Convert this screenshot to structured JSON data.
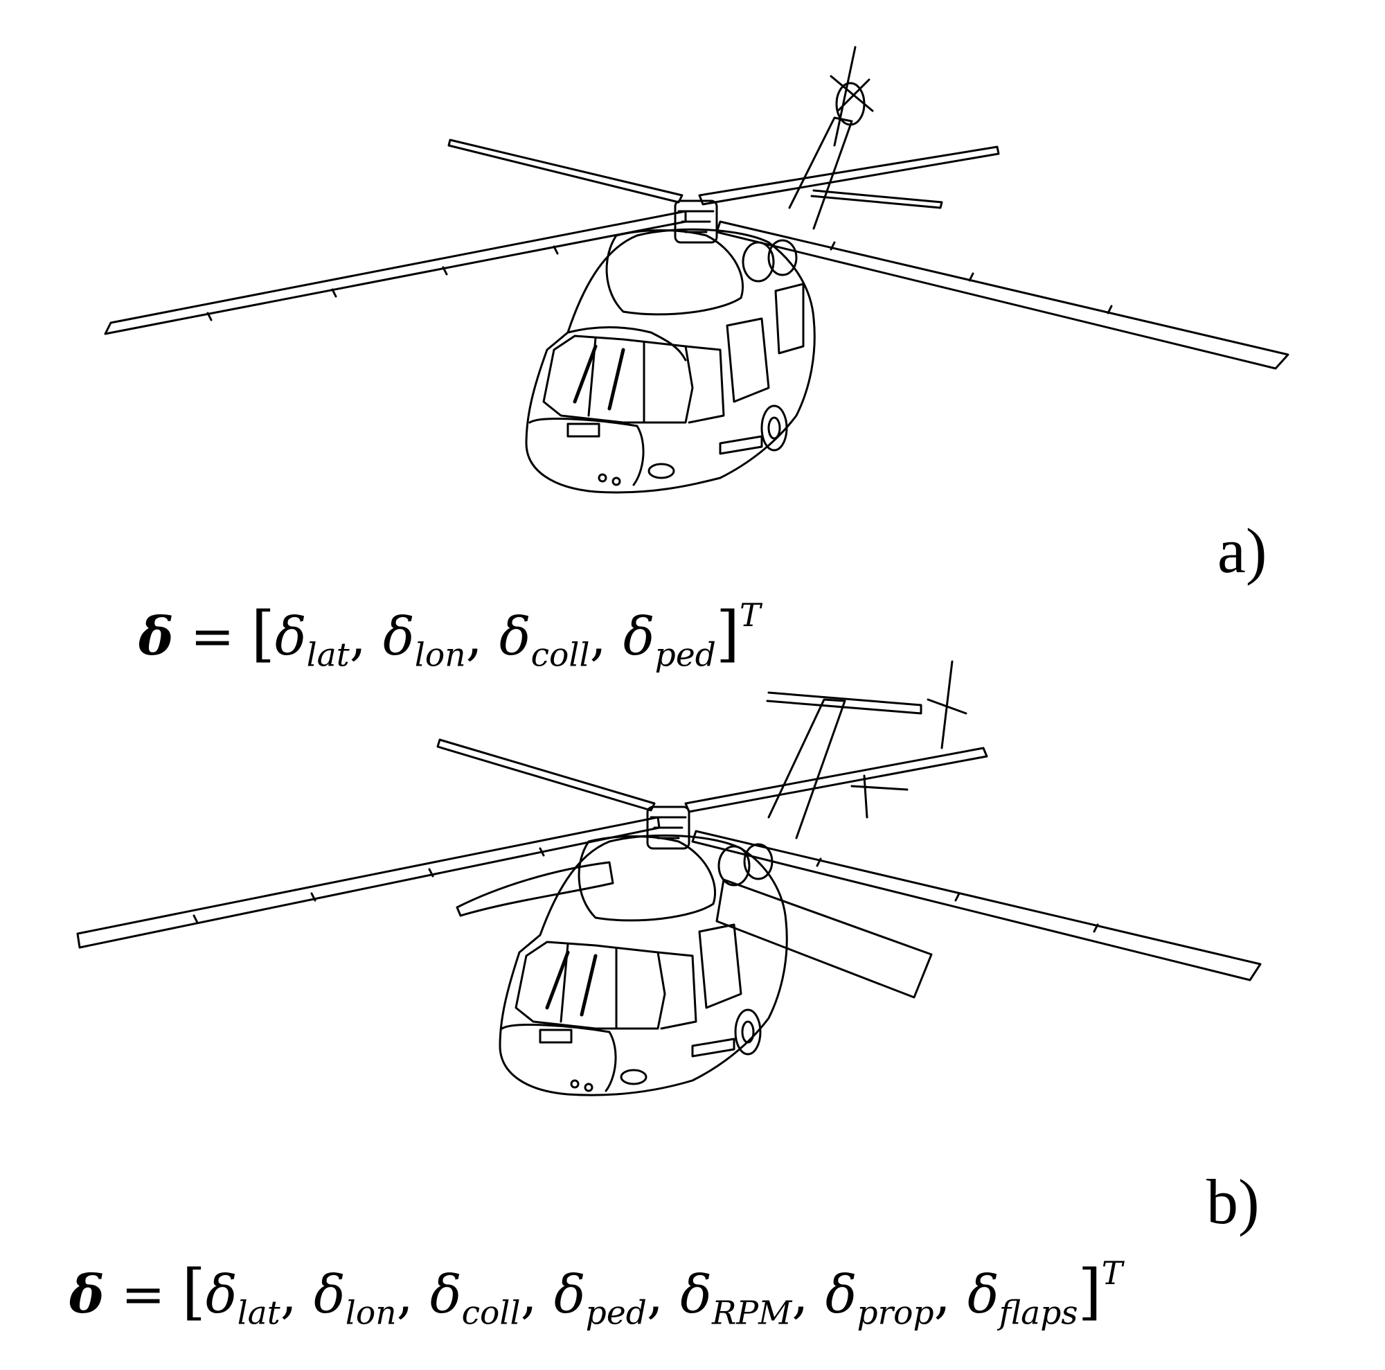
{
  "figure": {
    "panel_a": {
      "label": "a)",
      "equation": {
        "lhs": "δ",
        "equals": "=",
        "open": "[",
        "close": "]",
        "sup": "T",
        "terms": [
          {
            "sym": "δ",
            "sub": "lat"
          },
          {
            "sym": "δ",
            "sub": "lon"
          },
          {
            "sym": "δ",
            "sub": "coll"
          },
          {
            "sym": "δ",
            "sub": "ped"
          }
        ]
      }
    },
    "panel_b": {
      "label": "b)",
      "equation": {
        "lhs": "δ",
        "equals": "=",
        "open": "[",
        "close": "]",
        "sup": "T",
        "terms": [
          {
            "sym": "δ",
            "sub": "lat"
          },
          {
            "sym": "δ",
            "sub": "lon"
          },
          {
            "sym": "δ",
            "sub": "coll"
          },
          {
            "sym": "δ",
            "sub": "ped"
          },
          {
            "sym": "δ",
            "sub": "RPM"
          },
          {
            "sym": "δ",
            "sub": "prop"
          },
          {
            "sym": "δ",
            "sub": "flaps"
          }
        ]
      }
    },
    "colors": {
      "line": "#000000",
      "background": "#ffffff"
    }
  }
}
